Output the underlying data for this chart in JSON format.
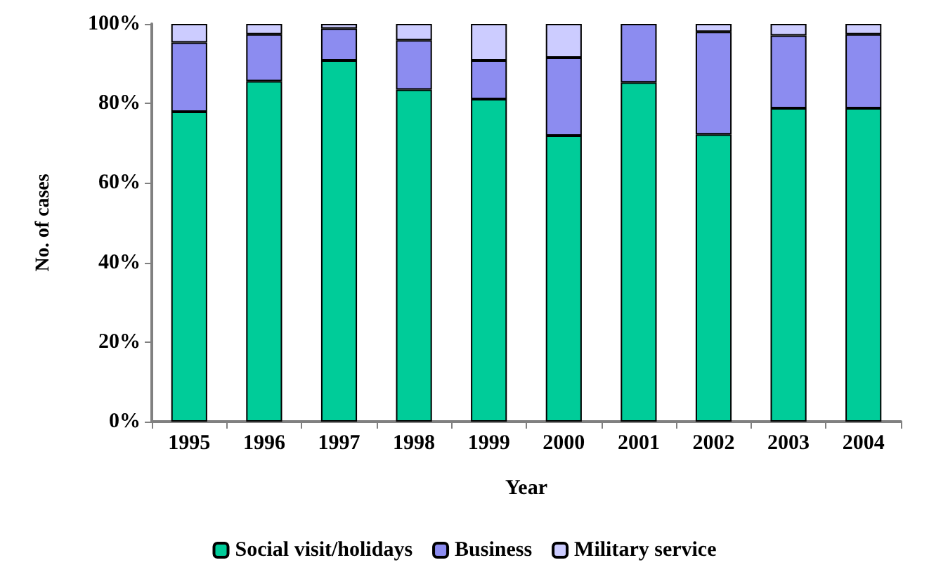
{
  "chart_data": {
    "type": "bar",
    "stacked": true,
    "xlabel": "Year",
    "ylabel": "No. of cases",
    "categories": [
      "1995",
      "1996",
      "1997",
      "1998",
      "1999",
      "2000",
      "2001",
      "2002",
      "2003",
      "2004"
    ],
    "series": [
      {
        "name": "Social visit/holidays",
        "color": "#00cc99",
        "values": [
          77.9,
          85.6,
          90.8,
          83.5,
          81.1,
          71.9,
          85.3,
          72.2,
          78.8,
          78.8
        ]
      },
      {
        "name": "Business",
        "color": "#8c8cf0",
        "values": [
          17.4,
          11.8,
          8.0,
          12.4,
          9.7,
          19.6,
          14.7,
          25.8,
          18.3,
          18.6
        ]
      },
      {
        "name": "Military service",
        "color": "#ccccff",
        "values": [
          4.7,
          2.6,
          1.2,
          4.1,
          9.2,
          8.5,
          0,
          2.0,
          2.9,
          2.6
        ]
      }
    ],
    "ylim": [
      0,
      100
    ],
    "yticks": [
      {
        "value": 0,
        "label": "0%"
      },
      {
        "value": 20,
        "label": "20%"
      },
      {
        "value": 40,
        "label": "40%"
      },
      {
        "value": 60,
        "label": "60%"
      },
      {
        "value": 80,
        "label": "80%"
      },
      {
        "value": 100,
        "label": "100%"
      }
    ],
    "grid": false,
    "legend": "bottom"
  }
}
